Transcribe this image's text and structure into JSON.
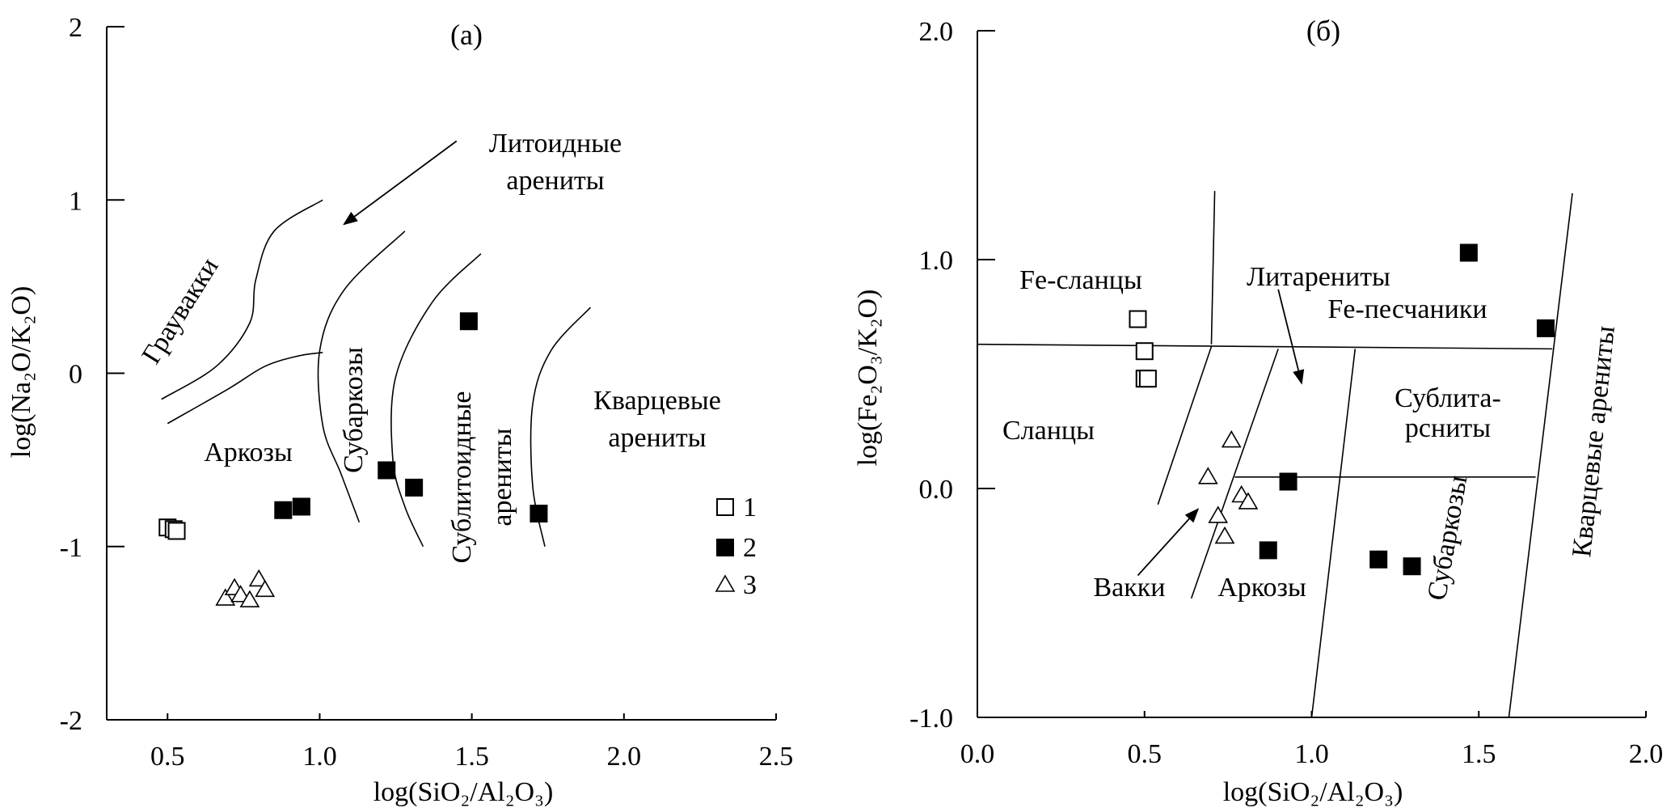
{
  "chart_data": [
    {
      "type": "scatter",
      "title": "(a)",
      "xlabel": "log(SiO₂/Al₂O₃)",
      "ylabel": "log(Na₂O/K₂O)",
      "xlim": [
        0.3,
        2.5
      ],
      "ylim": [
        -2,
        2
      ],
      "xticks": [
        "0.5",
        "1.0",
        "1.5",
        "2.0",
        "2.5"
      ],
      "xtick_values": [
        0.5,
        1.0,
        1.5,
        2.0,
        2.5
      ],
      "yticks": [
        "-2",
        "-1",
        "0",
        "1",
        "2"
      ],
      "ytick_values": [
        -2,
        -1,
        0,
        1,
        2
      ],
      "grid": false,
      "legend": {
        "placement": "right",
        "entries": [
          {
            "marker": "open-square",
            "label": "1"
          },
          {
            "marker": "filled-square",
            "label": "2"
          },
          {
            "marker": "open-triangle",
            "label": "3"
          }
        ]
      },
      "series": [
        {
          "name": "1",
          "marker": "open-square",
          "points": [
            [
              0.5,
              -0.89
            ],
            [
              0.52,
              -0.9
            ],
            [
              0.53,
              -0.91
            ]
          ]
        },
        {
          "name": "2",
          "marker": "filled-square",
          "points": [
            [
              0.88,
              -0.79
            ],
            [
              0.94,
              -0.77
            ],
            [
              1.22,
              -0.56
            ],
            [
              1.31,
              -0.66
            ],
            [
              1.49,
              0.3
            ],
            [
              1.72,
              -0.81
            ]
          ]
        },
        {
          "name": "3",
          "marker": "open-triangle",
          "points": [
            [
              0.69,
              -1.3
            ],
            [
              0.72,
              -1.24
            ],
            [
              0.74,
              -1.28
            ],
            [
              0.77,
              -1.31
            ],
            [
              0.8,
              -1.19
            ],
            [
              0.82,
              -1.25
            ]
          ]
        }
      ],
      "boundaries": [
        [
          [
            0.48,
            -0.15
          ],
          [
            0.66,
            0.04
          ],
          [
            0.77,
            0.29
          ],
          [
            0.79,
            0.54
          ],
          [
            0.85,
            0.82
          ],
          [
            1.01,
            1.0
          ]
        ],
        [
          [
            0.5,
            -0.29
          ],
          [
            0.7,
            -0.09
          ],
          [
            0.82,
            0.04
          ],
          [
            0.93,
            0.1
          ],
          [
            1.01,
            0.12
          ]
        ],
        [
          [
            1.28,
            0.82
          ],
          [
            1.08,
            0.48
          ],
          [
            1.0,
            0.13
          ],
          [
            1.01,
            -0.3
          ],
          [
            1.07,
            -0.58
          ],
          [
            1.13,
            -0.86
          ]
        ],
        [
          [
            1.53,
            0.69
          ],
          [
            1.37,
            0.41
          ],
          [
            1.25,
            -0.02
          ],
          [
            1.24,
            -0.49
          ],
          [
            1.28,
            -0.77
          ],
          [
            1.34,
            -1.0
          ]
        ],
        [
          [
            1.89,
            0.38
          ],
          [
            1.76,
            0.13
          ],
          [
            1.7,
            -0.18
          ],
          [
            1.7,
            -0.65
          ],
          [
            1.74,
            -1.0
          ]
        ]
      ],
      "arrows": [
        [
          [
            1.45,
            1.34
          ],
          [
            1.08,
            0.86
          ]
        ]
      ],
      "annotations": {
        "lithoid_1": "Литоидные",
        "lithoid_2": "арениты",
        "greywacke": "Граувакки",
        "arkose": "Аркозы",
        "subarkose": "Субаркозы",
        "sublithoid_1": "Сублитоидные",
        "sublithoid_2": "арениты",
        "quartz_1": "Кварцевые",
        "quartz_2": "арениты"
      }
    },
    {
      "type": "scatter",
      "title": "(б)",
      "xlabel": "log(SiO₂/Al₂O₃)",
      "ylabel": "log(Fe₂O₃/K₂O)",
      "xlim": [
        0.0,
        2.0
      ],
      "ylim": [
        -1.0,
        2.0
      ],
      "xticks": [
        "0.0",
        "0.5",
        "1.0",
        "1.5",
        "2.0"
      ],
      "xtick_values": [
        0.0,
        0.5,
        1.0,
        1.5,
        2.0
      ],
      "yticks": [
        "-1.0",
        "0.0",
        "1.0",
        "2.0"
      ],
      "ytick_values": [
        -1.0,
        0.0,
        1.0,
        2.0
      ],
      "grid": false,
      "series": [
        {
          "name": "1",
          "marker": "open-square",
          "points": [
            [
              0.48,
              0.74
            ],
            [
              0.5,
              0.6
            ],
            [
              0.5,
              0.48
            ],
            [
              0.51,
              0.48
            ]
          ]
        },
        {
          "name": "2",
          "marker": "filled-square",
          "points": [
            [
              0.87,
              -0.27
            ],
            [
              0.93,
              0.03
            ],
            [
              1.2,
              -0.31
            ],
            [
              1.3,
              -0.34
            ],
            [
              1.47,
              1.03
            ],
            [
              1.7,
              0.7
            ]
          ]
        },
        {
          "name": "3",
          "marker": "open-triangle",
          "points": [
            [
              0.69,
              0.05
            ],
            [
              0.72,
              -0.12
            ],
            [
              0.74,
              -0.21
            ],
            [
              0.76,
              0.21
            ],
            [
              0.79,
              -0.03
            ],
            [
              0.81,
              -0.06
            ]
          ]
        }
      ],
      "boundaries": [
        [
          [
            0.0,
            0.63
          ],
          [
            1.72,
            0.61
          ]
        ],
        [
          [
            0.71,
            1.3
          ],
          [
            0.7,
            0.63
          ]
        ],
        [
          [
            0.7,
            0.62
          ],
          [
            0.54,
            -0.07
          ]
        ],
        [
          [
            0.9,
            0.61
          ],
          [
            0.64,
            -0.48
          ]
        ],
        [
          [
            1.13,
            0.61
          ],
          [
            1.0,
            -1.0
          ]
        ],
        [
          [
            0.77,
            0.05
          ],
          [
            1.67,
            0.05
          ]
        ],
        [
          [
            1.78,
            1.29
          ],
          [
            1.59,
            -1.0
          ]
        ]
      ],
      "arrows": [
        [
          [
            0.9,
            0.87
          ],
          [
            0.97,
            0.46
          ]
        ],
        [
          [
            0.48,
            -0.38
          ],
          [
            0.66,
            -0.09
          ]
        ]
      ],
      "annotations": {
        "fe_shale": "Fe-сланцы",
        "litharenite": "Литарениты",
        "fe_sand": "Fe-песчаники",
        "shale": "Сланцы",
        "sublith_1": "Сублита-",
        "sublith_2": "рсниты",
        "wacke": "Вакки",
        "arkose": "Аркозы",
        "subarkose": "Субаркозы",
        "quartz": "Кварцевые арениты"
      }
    }
  ]
}
